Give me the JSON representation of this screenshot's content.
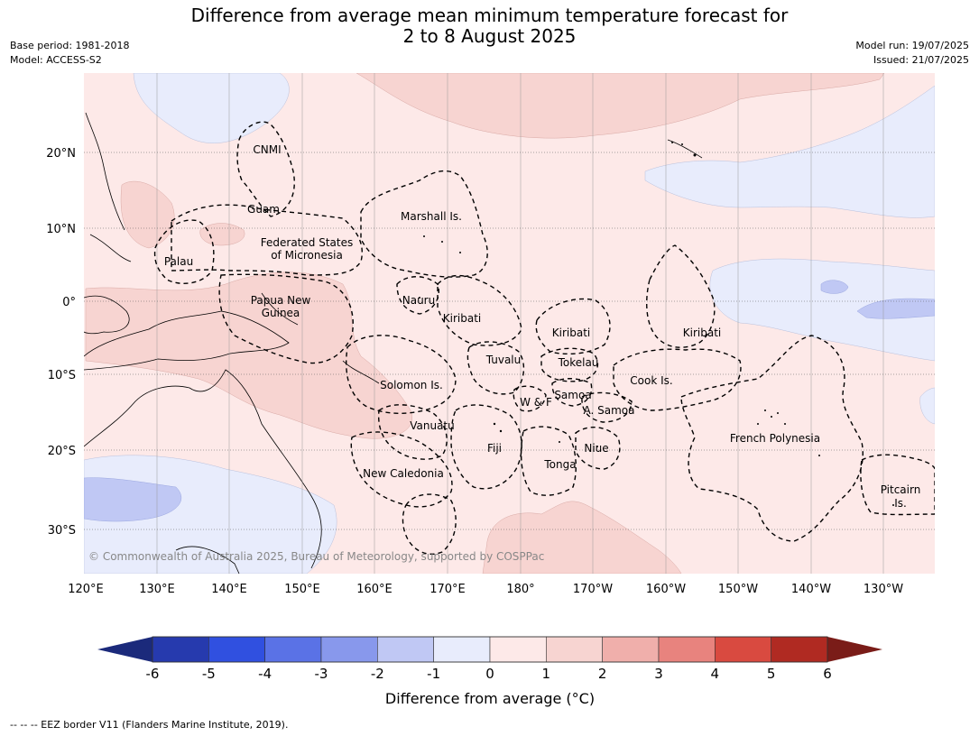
{
  "title_line1": "Difference from average mean minimum temperature forecast for",
  "title_line2": "2 to 8 August 2025",
  "base_period": "Base period: 1981-2018",
  "model": "Model: ACCESS-S2",
  "model_run": "Model run: 19/07/2025",
  "issued": "Issued: 21/07/2025",
  "lat_labels": [
    "20°N",
    "10°N",
    "0°",
    "10°S",
    "20°S",
    "30°S"
  ],
  "lon_labels": [
    "120°E",
    "130°E",
    "140°E",
    "150°E",
    "160°E",
    "170°E",
    "180°",
    "170°W",
    "160°W",
    "150°W",
    "140°W",
    "130°W"
  ],
  "regions": [
    {
      "lines": [
        "CNMI"
      ]
    },
    {
      "lines": [
        "Guam"
      ]
    },
    {
      "lines": [
        "Marshall Is."
      ]
    },
    {
      "lines": [
        "Palau"
      ]
    },
    {
      "lines": [
        "Federated States",
        "of Micronesia"
      ]
    },
    {
      "lines": [
        "Nauru"
      ]
    },
    {
      "lines": [
        "Papua New",
        "Guinea"
      ]
    },
    {
      "lines": [
        "Kiribati"
      ]
    },
    {
      "lines": [
        "Kiribati"
      ]
    },
    {
      "lines": [
        "Kiribati"
      ]
    },
    {
      "lines": [
        "Tuvalu"
      ]
    },
    {
      "lines": [
        "Tokelau"
      ]
    },
    {
      "lines": [
        "Cook Is."
      ]
    },
    {
      "lines": [
        "Solomon Is."
      ]
    },
    {
      "lines": [
        "Samoa"
      ]
    },
    {
      "lines": [
        "W & F"
      ]
    },
    {
      "lines": [
        "A. Samoa"
      ]
    },
    {
      "lines": [
        "Vanuatu"
      ]
    },
    {
      "lines": [
        "Fiji"
      ]
    },
    {
      "lines": [
        "Niue"
      ]
    },
    {
      "lines": [
        "Tonga"
      ]
    },
    {
      "lines": [
        "French Polynesia"
      ]
    },
    {
      "lines": [
        "New Caledonia"
      ]
    },
    {
      "lines": [
        "Pitcairn",
        "Is."
      ]
    }
  ],
  "copyright": "© Commonwealth of Australia 2025, Bureau of Meteorology, supported by COSPPac",
  "colorbar": {
    "ticks": [
      "-6",
      "-5",
      "-4",
      "-3",
      "-2",
      "-1",
      "0",
      "1",
      "2",
      "3",
      "4",
      "5",
      "6"
    ],
    "low_extend_color": "#1b2a7b",
    "high_extend_color": "#7a1c18",
    "colors": [
      "#263aae",
      "#3050e0",
      "#5a72e6",
      "#8898ec",
      "#c0c8f4",
      "#e8ecfc",
      "#fde9e8",
      "#f7d4d1",
      "#f0afab",
      "#e8837e",
      "#d94a40",
      "#b02a22"
    ],
    "label": "Difference from average (°C)"
  },
  "footer": "--  --  -- EEZ border V11 (Flanders Marine Institute, 2019).",
  "colors": {
    "background_anomaly": "#fde9e8",
    "warm_patch": "#f7d4d1",
    "cool_patch": "#e8ecfc",
    "cooler_patch": "#c0c8f4"
  }
}
